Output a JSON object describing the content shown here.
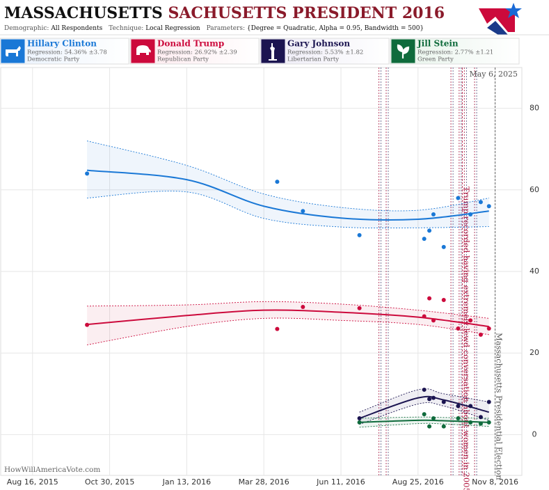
{
  "chart_data": {
    "type": "scatter",
    "title_main": "MASSACHUSETTS",
    "title_sub": "SACHUSETTS PRESIDENT 2016",
    "params": [
      {
        "label": "Demographic:",
        "value": "All Respondents"
      },
      {
        "label": "Technique:",
        "value": "Local Regression"
      },
      {
        "label": "Parameters:",
        "value": "{Degree = Quadratic, Alpha = 0.95, Bandwidth = 500}"
      }
    ],
    "date_note": "May 6, 2025",
    "credit": "HowWillAmericaVote.com",
    "xlim": [
      "2015-07-16",
      "2016-12-04"
    ],
    "xticks": [
      {
        "value": "2015-08-16",
        "label": "Aug 16, 2015"
      },
      {
        "value": "2015-10-30",
        "label": "Oct 30, 2015"
      },
      {
        "value": "2016-01-13",
        "label": "Jan 13, 2016"
      },
      {
        "value": "2016-03-28",
        "label": "Mar 28, 2016"
      },
      {
        "value": "2016-06-11",
        "label": "Jun 11, 2016"
      },
      {
        "value": "2016-08-25",
        "label": "Aug 25, 2016"
      },
      {
        "value": "2016-11-08",
        "label": "Nov 8, 2016"
      }
    ],
    "ylim": [
      -10,
      90
    ],
    "yticks": [
      0,
      20,
      40,
      60,
      80
    ],
    "grid": true,
    "event_lines": [
      "2016-07-18",
      "2016-07-25",
      "2016-09-26",
      "2016-10-04",
      "2016-10-09",
      "2016-10-19"
    ],
    "annotations": [
      {
        "date": "2016-10-07",
        "text": "Trump recorded having extremely lewd conversation about women in 2005",
        "color": "#b0103a"
      },
      {
        "date": "2016-11-08",
        "text": "Massachusetts Presidential Election",
        "color": "#555555"
      }
    ],
    "series": [
      {
        "name": "Hillary Clinton",
        "regression": "Regression: 54.36% ±3.78",
        "party": "Democratic Party",
        "color": "#1a78d6",
        "tint": "#e8f1fc",
        "x": [
          "2015-10-08",
          "2016-04-10",
          "2016-05-05",
          "2016-06-29",
          "2016-08-31",
          "2016-09-05",
          "2016-09-09",
          "2016-09-19",
          "2016-10-03",
          "2016-10-15",
          "2016-10-25",
          "2016-11-02"
        ],
        "values": [
          64,
          62,
          54.8,
          48.9,
          48,
          50,
          54,
          46,
          58,
          54,
          57,
          56
        ],
        "fit_x": [
          "2015-10-08",
          "2016-01-13",
          "2016-03-28",
          "2016-06-11",
          "2016-08-25",
          "2016-11-02"
        ],
        "fit": [
          64.8,
          62.5,
          56,
          53.1,
          52.8,
          54.8
        ],
        "fit_upper": [
          72,
          66,
          59,
          55.7,
          55,
          58
        ],
        "fit_lower": [
          58,
          59.5,
          53,
          50.9,
          50.7,
          51
        ]
      },
      {
        "name": "Donald Trump",
        "regression": "Regression: 26.92% ±2.39",
        "party": "Republican Party",
        "color": "#cc0a3c",
        "tint": "#fde8ed",
        "x": [
          "2015-10-08",
          "2016-04-10",
          "2016-05-05",
          "2016-06-29",
          "2016-08-31",
          "2016-09-05",
          "2016-09-09",
          "2016-09-19",
          "2016-10-03",
          "2016-10-15",
          "2016-10-25",
          "2016-11-02"
        ],
        "values": [
          26.9,
          25.9,
          31.3,
          31,
          29,
          33.4,
          28,
          33,
          26,
          28,
          24.5,
          26
        ],
        "fit_x": [
          "2015-10-08",
          "2016-01-13",
          "2016-03-28",
          "2016-06-11",
          "2016-08-25",
          "2016-11-02"
        ],
        "fit": [
          27,
          29.2,
          30.5,
          30,
          28.8,
          26.5
        ],
        "fit_upper": [
          31.5,
          31.8,
          32.6,
          32,
          30.5,
          28.5
        ],
        "fit_lower": [
          22,
          26.5,
          28.5,
          28,
          27,
          24.5
        ]
      },
      {
        "name": "Gary Johnson",
        "regression": "Regression: 5.53% ±1.82",
        "party": "Libertarian Party",
        "color": "#1b1450",
        "tint": "#eceaf5",
        "x": [
          "2016-06-29",
          "2016-08-31",
          "2016-09-05",
          "2016-09-09",
          "2016-09-19",
          "2016-10-03",
          "2016-10-15",
          "2016-10-25",
          "2016-11-02"
        ],
        "values": [
          4,
          11,
          8.7,
          9,
          8,
          7,
          7,
          4.3,
          8
        ],
        "fit_x": [
          "2016-06-29",
          "2016-08-25",
          "2016-09-19",
          "2016-11-02"
        ],
        "fit": [
          4,
          9,
          8.5,
          5.5
        ],
        "fit_upper": [
          5.5,
          11,
          10,
          8
        ],
        "fit_lower": [
          2.5,
          7.5,
          7,
          3.5
        ]
      },
      {
        "name": "Jill Stein",
        "regression": "Regression: 2.77% ±1.21",
        "party": "Green Party",
        "color": "#0f6b3c",
        "tint": "#e6f3ea",
        "x": [
          "2016-06-29",
          "2016-08-31",
          "2016-09-05",
          "2016-09-09",
          "2016-09-19",
          "2016-10-03",
          "2016-10-15",
          "2016-10-25",
          "2016-11-02"
        ],
        "values": [
          3,
          5,
          2,
          4,
          2,
          4,
          3,
          2.7,
          3
        ],
        "fit_x": [
          "2016-06-29",
          "2016-08-25",
          "2016-09-19",
          "2016-11-02"
        ],
        "fit": [
          3,
          3.5,
          3.4,
          3
        ],
        "fit_upper": [
          4,
          4.3,
          4.2,
          4
        ],
        "fit_lower": [
          1.8,
          2.7,
          2.6,
          2
        ]
      }
    ]
  }
}
